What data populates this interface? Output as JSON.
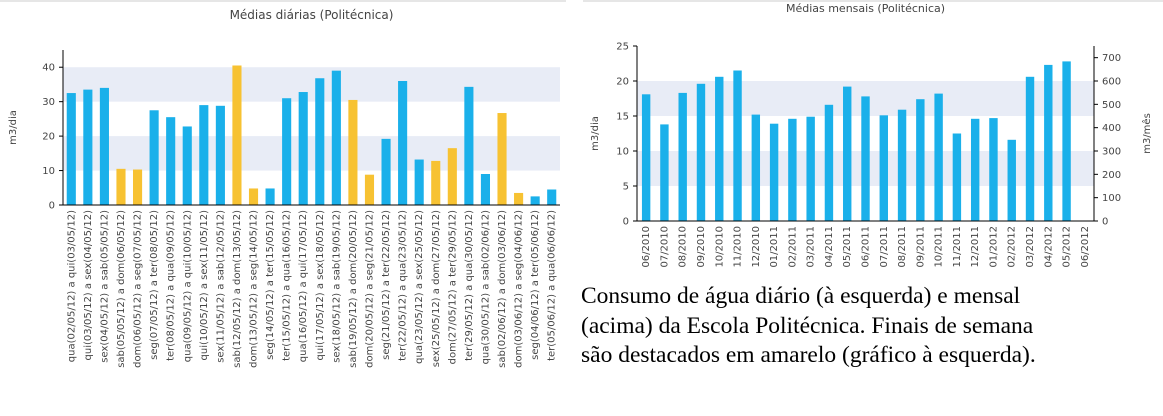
{
  "colors": {
    "weekday": "#1ab0ea",
    "weekend": "#f7c232",
    "band": "#e8ecf6",
    "axis": "#000000",
    "text": "#444444"
  },
  "caption": {
    "line1": "Consumo de água diário (à esquerda) e mensal",
    "line2": "(acima) da Escola Politécnica. Finais de semana",
    "line3": "são destacados em amarelo (gráfico à esquerda)."
  },
  "chart_data": [
    {
      "type": "bar",
      "title": "Médias diárias (Politécnica)",
      "ylabel": "m3/dia",
      "ylim": [
        0,
        45
      ],
      "yticks": [
        0,
        10,
        20,
        30,
        40
      ],
      "grid": "alternating horizontal bands",
      "categories": [
        "qua(02/05/12) a qui(03/05/12)",
        "qui(03/05/12) a sex(04/05/12)",
        "sex(04/05/12) a sab(05/05/12)",
        "sab(05/05/12) a dom(06/05/12)",
        "dom(06/05/12) a seg(07/05/12)",
        "seg(07/05/12) a ter(08/05/12)",
        "ter(08/05/12) a qua(09/05/12)",
        "qua(09/05/12) a qui(10/05/12)",
        "qui(10/05/12) a sex(11/05/12)",
        "sex(11/05/12) a sab(12/05/12)",
        "sab(12/05/12) a dom(13/05/12)",
        "dom(13/05/12) a seg(14/05/12)",
        "seg(14/05/12) a ter(15/05/12)",
        "ter(15/05/12) a qua(16/05/12)",
        "qua(16/05/12) a qui(17/05/12)",
        "qui(17/05/12) a sex(18/05/12)",
        "sex(18/05/12) a sab(19/05/12)",
        "sab(19/05/12) a dom(20/05/12)",
        "dom(20/05/12) a seg(21/05/12)",
        "seg(21/05/12) a ter(22/05/12)",
        "ter(22/05/12) a qua(23/05/12)",
        "qua(23/05/12) a sex(25/05/12)",
        "sex(25/05/12) a dom(27/05/12)",
        "dom(27/05/12) a ter(29/05/12)",
        "ter(29/05/12) a qua(30/05/12)",
        "qua(30/05/12) a sab(02/06/12)",
        "sab(02/06/12) a dom(03/06/12)",
        "dom(03/06/12) a seg(04/06/12)",
        "seg(04/06/12) a ter(05/06/12)",
        "ter(05/06/12) a qua(06/06/12)"
      ],
      "values": [
        32.5,
        33.5,
        34,
        10.5,
        10.3,
        27.5,
        25.5,
        22.8,
        29,
        28.8,
        40.5,
        4.8,
        4.8,
        31,
        32.8,
        36.8,
        39,
        30.5,
        8.8,
        19.2,
        36,
        13.2,
        12.8,
        16.5,
        34.3,
        9,
        26.7,
        3.5,
        2.5,
        4.5
      ],
      "weekend": [
        false,
        false,
        false,
        true,
        true,
        false,
        false,
        false,
        false,
        false,
        true,
        true,
        false,
        false,
        false,
        false,
        false,
        true,
        true,
        false,
        false,
        false,
        true,
        true,
        false,
        false,
        true,
        true,
        false,
        false
      ]
    },
    {
      "type": "bar",
      "title": "Médias mensais (Politécnica)",
      "ylabel": "m3/dia",
      "ylabel_right": "m3/mês",
      "ylim": [
        0,
        25
      ],
      "yticks": [
        0,
        5,
        10,
        15,
        20,
        25
      ],
      "ylim_right": [
        0,
        750
      ],
      "yticks_right": [
        0,
        100,
        200,
        300,
        400,
        500,
        600,
        700
      ],
      "grid": "alternating horizontal bands",
      "categories": [
        "06/2010",
        "07/2010",
        "08/2010",
        "09/2010",
        "10/2010",
        "11/2010",
        "12/2010",
        "01/2011",
        "02/2011",
        "03/2011",
        "04/2011",
        "05/2011",
        "06/2011",
        "07/2011",
        "08/2011",
        "09/2011",
        "10/2011",
        "11/2011",
        "12/2011",
        "01/2012",
        "02/2012",
        "03/2012",
        "04/2012",
        "05/2012",
        "06/2012"
      ],
      "values": [
        18.1,
        13.8,
        18.3,
        19.6,
        20.6,
        21.5,
        15.2,
        13.9,
        14.6,
        14.9,
        16.6,
        19.2,
        17.8,
        15.1,
        15.9,
        17.4,
        18.2,
        12.5,
        14.6,
        14.7,
        11.6,
        20.6,
        22.3,
        22.8,
        null
      ]
    }
  ]
}
